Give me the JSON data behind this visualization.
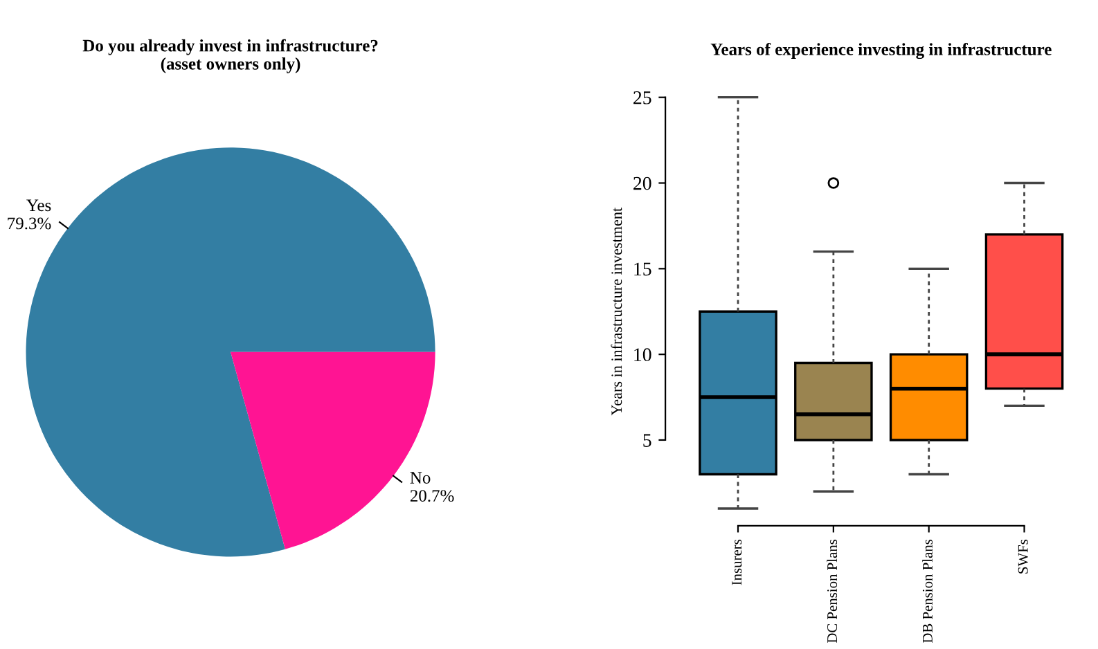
{
  "chart_data": [
    {
      "type": "pie",
      "title": "Do you already invest in infrastructure?\n(asset owners only)",
      "categories": [
        "Yes",
        "No"
      ],
      "values": [
        79.3,
        20.7
      ],
      "value_labels": [
        "79.3%",
        "20.7%"
      ],
      "colors": [
        "#337ea3",
        "#ff1493"
      ]
    },
    {
      "type": "box",
      "title": "Years of experience investing in infrastructure",
      "ylabel": "Years in infrastructure investment",
      "categories": [
        "Insurers",
        "DC Pension Plans",
        "DB Pension Plans",
        "SWFs"
      ],
      "colors": [
        "#337ea3",
        "#9a8450",
        "#ff8c00",
        "#ff4f4a"
      ],
      "ylim": [
        0,
        25
      ],
      "yticks": [
        5,
        10,
        15,
        20,
        25
      ],
      "grid": false,
      "boxes": [
        {
          "low": 1,
          "q1": 3,
          "median": 7.5,
          "q3": 12.5,
          "high": 25
        },
        {
          "low": 2,
          "q1": 5,
          "median": 6.5,
          "q3": 9.5,
          "high": 16,
          "outliers": [
            20
          ]
        },
        {
          "low": 3,
          "q1": 5,
          "median": 8,
          "q3": 10,
          "high": 15
        },
        {
          "low": 7,
          "q1": 8,
          "median": 10,
          "q3": 17,
          "high": 20
        }
      ]
    }
  ]
}
